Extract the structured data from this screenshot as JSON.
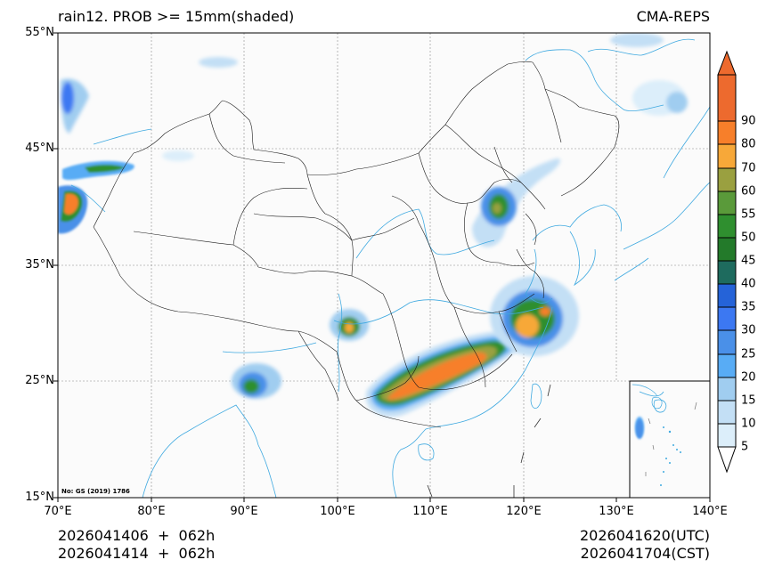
{
  "header": {
    "title_left": "rain12. PROB >= 15mm(shaded)",
    "title_right": "CMA-REPS"
  },
  "map": {
    "extent": {
      "lon_min": 70,
      "lon_max": 140,
      "lat_min": 15,
      "lat_max": 55
    },
    "background_color": "#fbfbfb",
    "province_line_color": "#1a1a1a",
    "river_coast_color": "#3fa9e0",
    "grid_color": "#888888",
    "approval_note": "No: GS (2019) 1786",
    "inset": "South China Sea inset (lower right)"
  },
  "axes": {
    "y_ticks": [
      "55°N",
      "45°N",
      "35°N",
      "25°N",
      "15°N"
    ],
    "x_ticks": [
      "70°E",
      "80°E",
      "90°E",
      "100°E",
      "110°E",
      "120°E",
      "130°E",
      "140°E"
    ]
  },
  "colorbar": {
    "levels": [
      "5",
      "10",
      "15",
      "20",
      "25",
      "30",
      "35",
      "40",
      "45",
      "50",
      "55",
      "60",
      "70",
      "80",
      "90"
    ],
    "colors": [
      "#dceefa",
      "#c3dff5",
      "#a0cdf0",
      "#58acf5",
      "#4a90e8",
      "#3c78f2",
      "#2563d8",
      "#1e6b5e",
      "#237a2a",
      "#2f8f2f",
      "#5a9a3a",
      "#9aa040",
      "#f7a839",
      "#f77f2a",
      "#ed6a2e"
    ],
    "under_color": "#ffffff",
    "over_color": "#ed6a2e"
  },
  "footer": {
    "init_utc": "2026041406  +  062h",
    "init_cst": "2026041414  +  062h",
    "valid_utc": "2026041620(UTC)",
    "valid_cst": "2026041704(CST)"
  }
}
